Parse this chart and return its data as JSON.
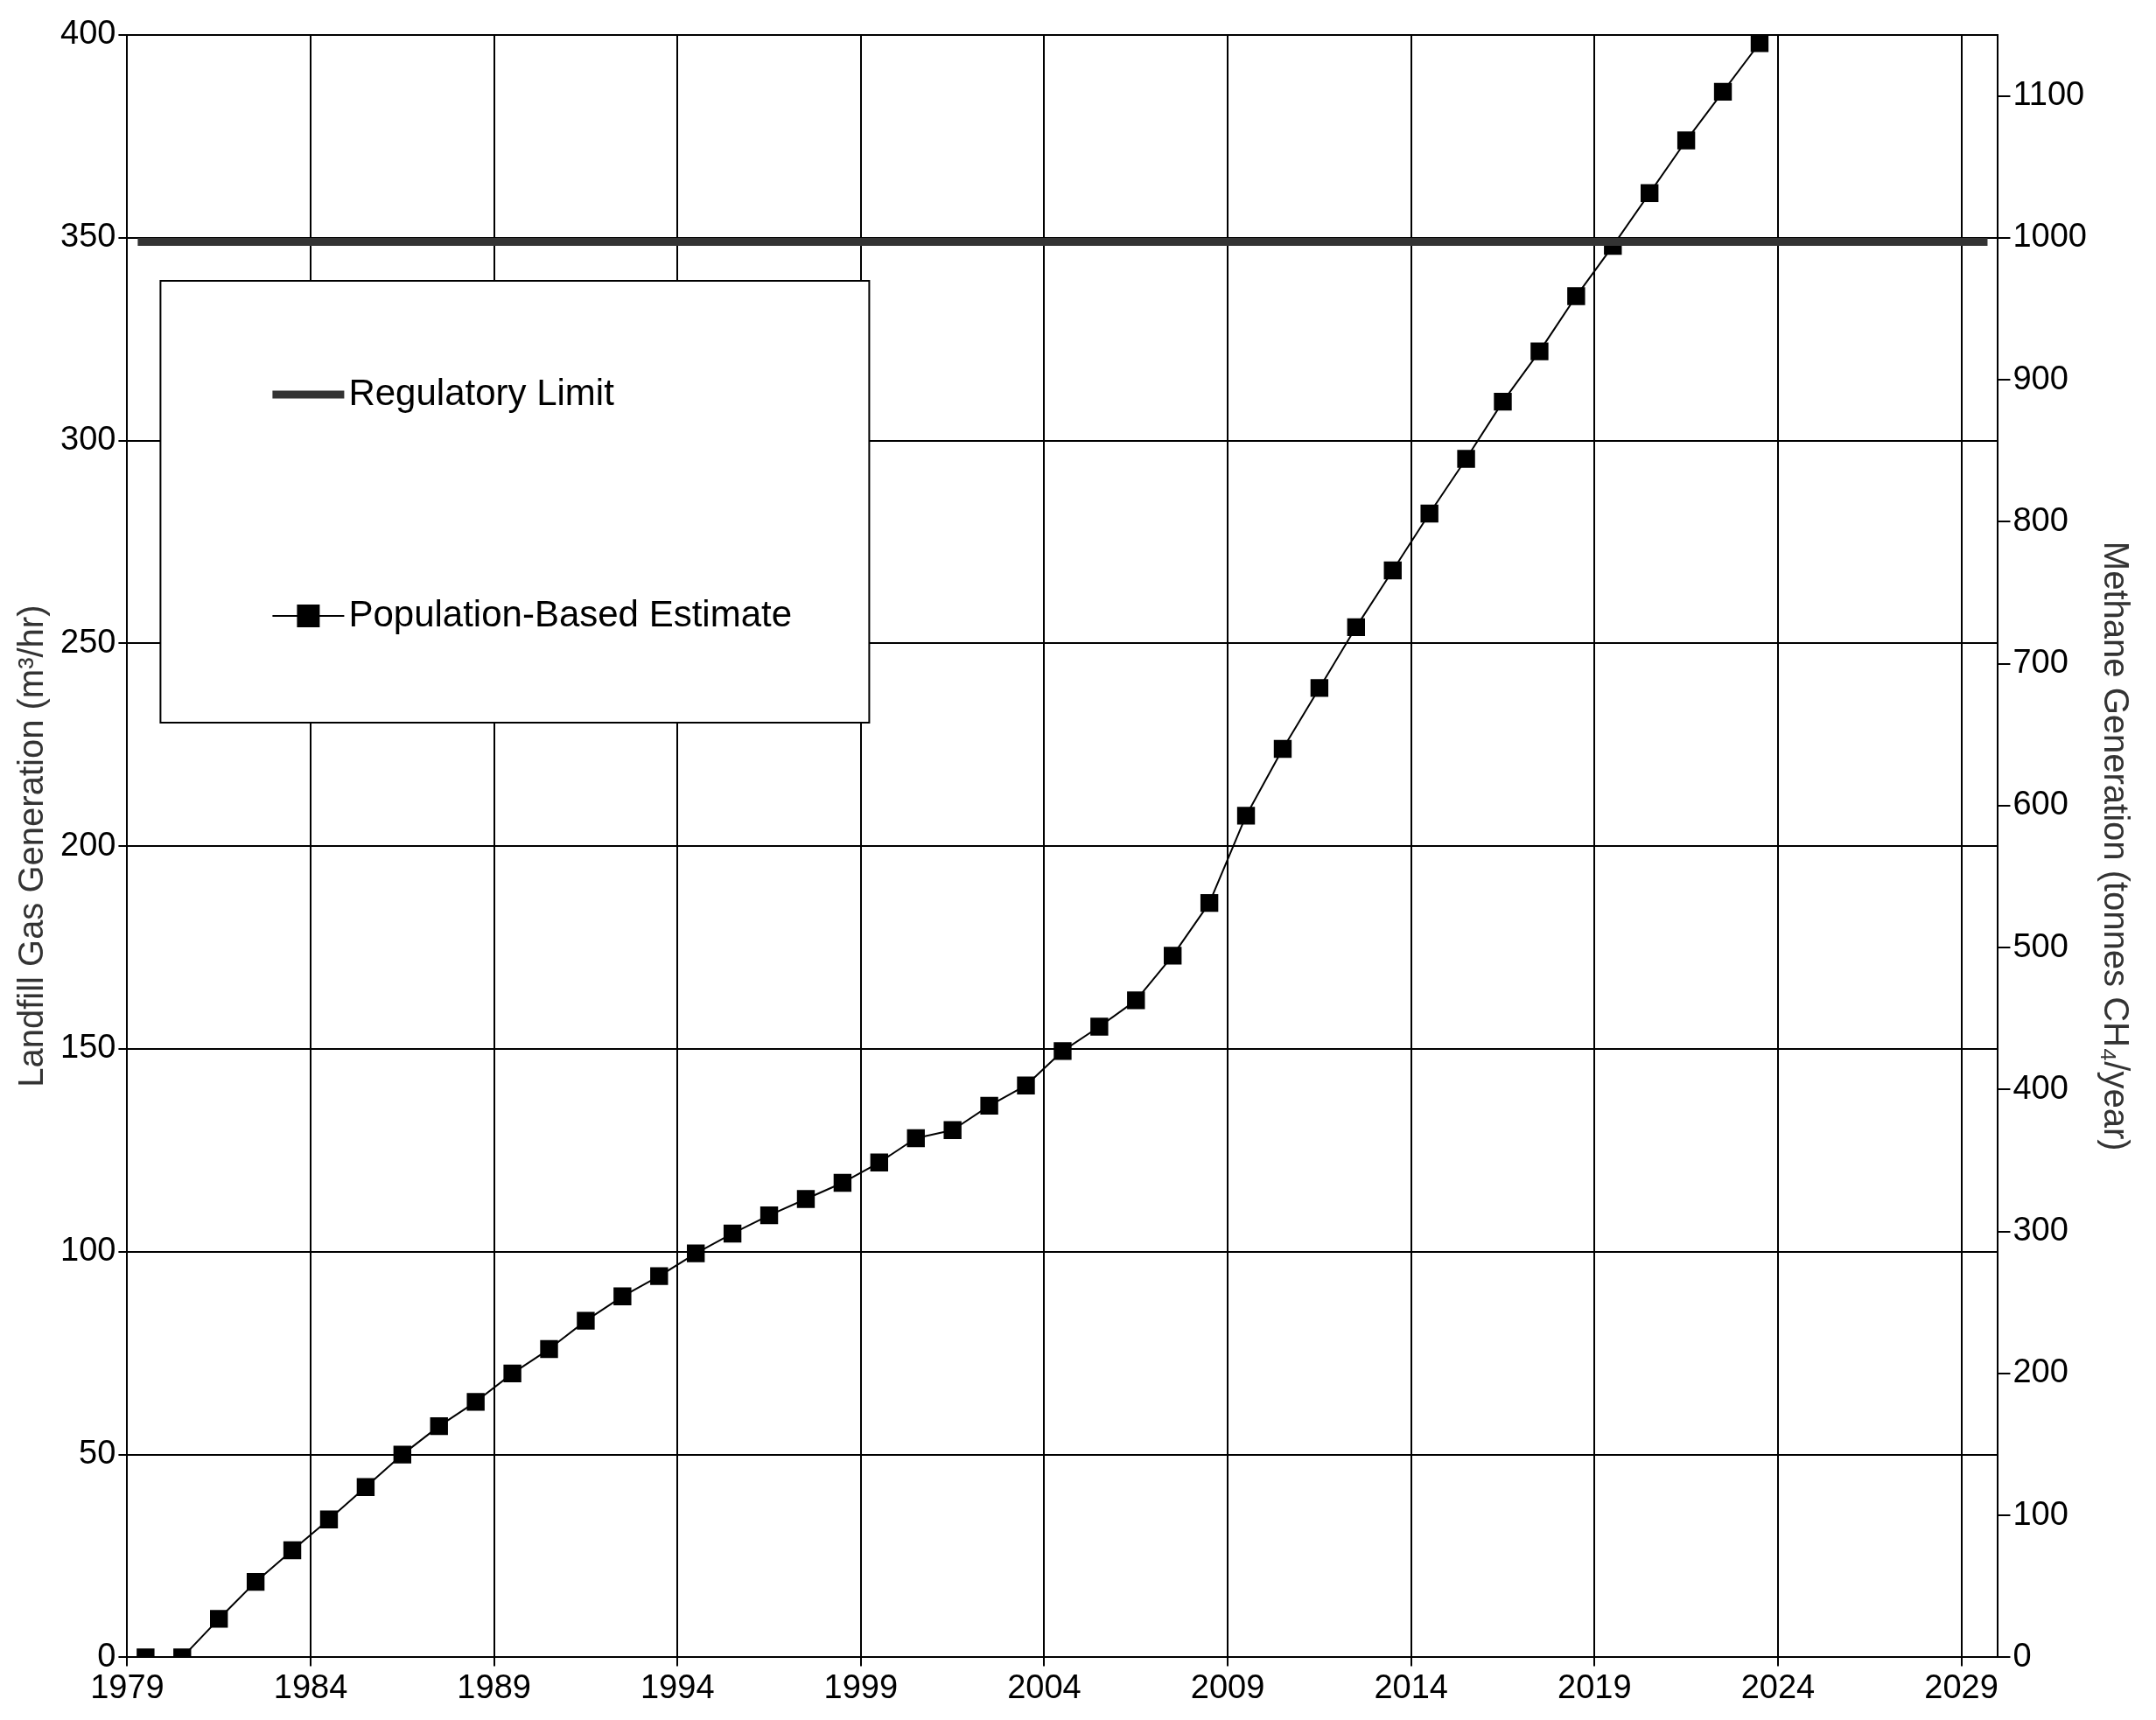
{
  "chart_data": {
    "type": "line",
    "xlabel": null,
    "ylabel": "Landfill Gas Generation (m³/hr)",
    "y2label": "Methane Generation (tonnes CH₄/year)",
    "series": [
      {
        "name": "Population-Based Estimate",
        "color": "#000000",
        "x": [
          1979.5,
          1980.5,
          1981.5,
          1982.5,
          1983.5,
          1984.5,
          1985.5,
          1986.5,
          1987.5,
          1988.5,
          1989.5,
          1990.5,
          1991.5,
          1992.5,
          1993.5,
          1994.5,
          1995.5,
          1996.5,
          1997.5,
          1998.5,
          1999.5,
          2000.5,
          2001.5,
          2002.5,
          2003.5,
          2004.5,
          2005.5,
          2006.5,
          2007.5,
          2008.5,
          2009.5,
          2010.5,
          2011.5,
          2012.5,
          2013.5,
          2014.5,
          2015.5,
          2016.5,
          2017.5,
          2018.5,
          2019.5,
          2020.5,
          2021.5,
          2022.5,
          2023.5
        ],
        "values": [
          0,
          0,
          9.5,
          18.6,
          26.4,
          34,
          42,
          50,
          57,
          63,
          70,
          76,
          83,
          89,
          94,
          99.6,
          104.5,
          109,
          113,
          117,
          122,
          128,
          130,
          136,
          141,
          149.5,
          155.5,
          162,
          173,
          186,
          207.5,
          224,
          239,
          254,
          268,
          282,
          295.5,
          309.6,
          322,
          335.6,
          348,
          361,
          374,
          386,
          398
        ]
      }
    ],
    "ref_lines": [
      {
        "axis": "y",
        "value": 349,
        "label": "Regulatory Limit",
        "color": "#333333"
      }
    ],
    "xlim": [
      1979,
      2030
    ],
    "xticks": [
      1979,
      1984,
      1989,
      1994,
      1999,
      2004,
      2009,
      2014,
      2019,
      2024,
      2029
    ],
    "ylim": [
      0,
      400
    ],
    "yticks": [
      0,
      50,
      100,
      150,
      200,
      250,
      300,
      350,
      400
    ],
    "y2lim": [
      0,
      1143
    ],
    "y2ticks": [
      0,
      100,
      200,
      300,
      400,
      500,
      600,
      700,
      800,
      900,
      1000,
      1100
    ],
    "grid": true,
    "legend": "top left",
    "marker": "square",
    "line_style": "solid"
  }
}
